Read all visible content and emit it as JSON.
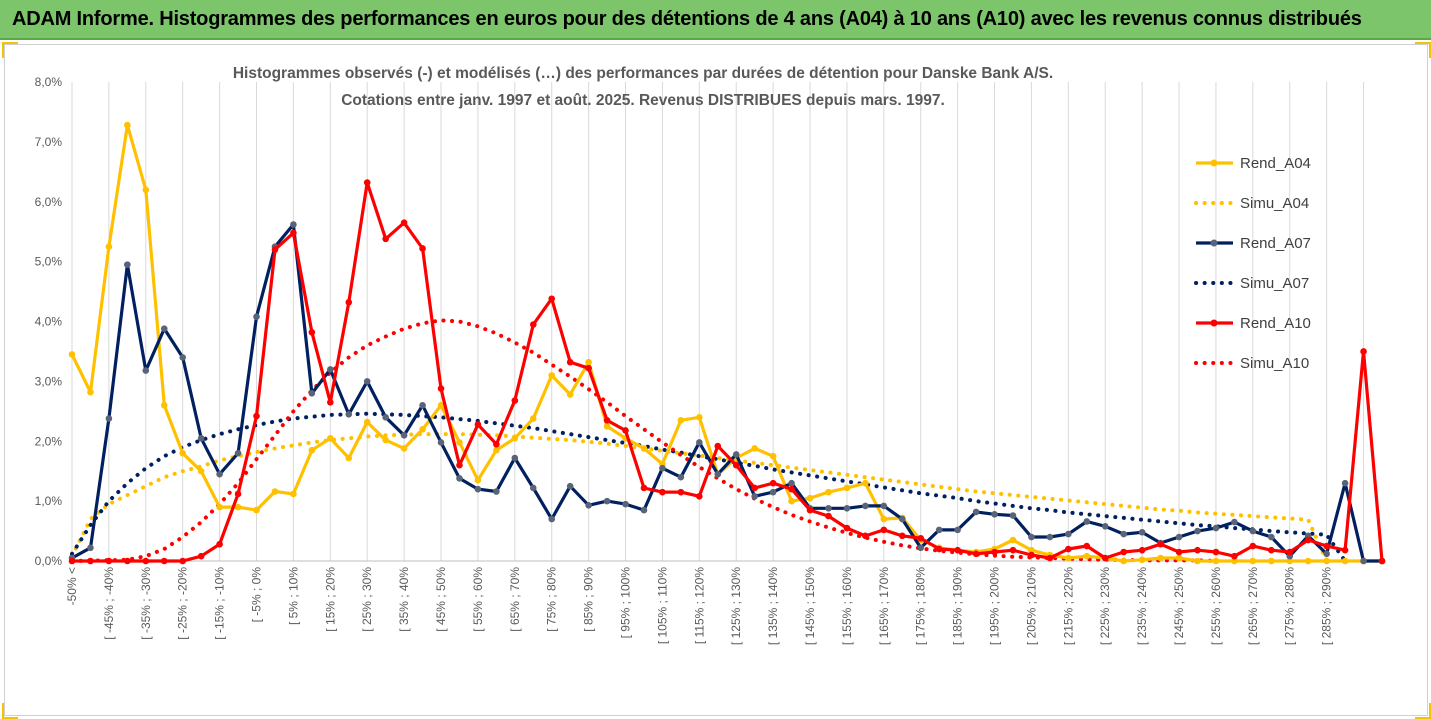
{
  "banner": {
    "title": "ADAM Informe. Histogrammes des performances en euros pour des détentions de 4 ans (A04) à 10 ans (A10) avec les revenus connus distribués"
  },
  "chart_data": {
    "type": "line",
    "title_line1": "Histogrammes observés (-) et modélisés (…) des performances par durées de détention pour Danske Bank A/S.",
    "title_line2": "Cotations entre janv. 1997 et août. 2025. Revenus DISTRIBUES depuis mars. 1997.",
    "xlabel": "",
    "ylabel": "",
    "ylim": [
      0,
      8
    ],
    "y_ticks": [
      "0,0%",
      "1,0%",
      "2,0%",
      "3,0%",
      "4,0%",
      "5,0%",
      "6,0%",
      "7,0%",
      "8,0%"
    ],
    "grid": "vertical",
    "legend_position": "right",
    "x_tick_labels": [
      "-50% <",
      "[ -45% ; -40%",
      "[ -35% ; -30%",
      "[ -25% ; -20%",
      "[ -15% ; -10%",
      "[ -5% ; 0%",
      "[ 5% ; 10%",
      "[ 15% ; 20%",
      "[ 25% ; 30%",
      "[ 35% ; 40%",
      "[ 45% ; 50%",
      "[ 55% ; 60%",
      "[ 65% ; 70%",
      "[ 75% ; 80%",
      "[ 85% ; 90%",
      "[ 95% ; 100%",
      "[ 105% ; 110%",
      "[ 115% ; 120%",
      "[ 125% ; 130%",
      "[ 135% ; 140%",
      "[ 145% ; 150%",
      "[ 155% ; 160%",
      "[ 165% ; 170%",
      "[ 175% ; 180%",
      "[ 185% ; 190%",
      "[ 195% ; 200%",
      "[ 205% ; 210%",
      "[ 215% ; 220%",
      "[ 225% ; 230%",
      "[ 235% ; 240%",
      "[ 245% ; 250%",
      "[ 255% ; 260%",
      "[ 265% ; 270%",
      "[ 275% ; 280%",
      "[ 285% ; 290%"
    ],
    "series": [
      {
        "name": "Rend_A04",
        "style": "solid",
        "color": "#ffc000",
        "values": [
          3.45,
          2.82,
          5.25,
          7.28,
          6.2,
          2.6,
          1.8,
          1.5,
          0.9,
          0.9,
          0.85,
          1.16,
          1.12,
          1.85,
          2.05,
          1.72,
          2.32,
          2.02,
          1.88,
          2.2,
          2.6,
          1.98,
          1.35,
          1.85,
          2.05,
          2.38,
          3.1,
          2.78,
          3.32,
          2.25,
          2.05,
          1.88,
          1.62,
          2.35,
          2.4,
          1.45,
          1.72,
          1.88,
          1.75,
          1.0,
          1.05,
          1.15,
          1.22,
          1.3,
          0.7,
          0.72,
          0.35,
          0.22,
          0.18,
          0.15,
          0.2,
          0.35,
          0.18,
          0.1,
          0.05,
          0.08,
          0.05,
          0.0,
          0.02,
          0.05,
          0.05,
          0.0,
          0.0,
          0.0,
          0.0,
          0.0,
          0.0,
          0.0,
          0.0,
          0.0,
          0.0,
          0.0
        ]
      },
      {
        "name": "Simu_A04",
        "style": "dotted",
        "color": "#ffc000",
        "values": [
          0.08,
          0.7,
          0.95,
          1.1,
          1.25,
          1.4,
          1.5,
          1.58,
          1.68,
          1.75,
          1.82,
          1.88,
          1.93,
          1.98,
          2.02,
          2.05,
          2.08,
          2.1,
          2.11,
          2.12,
          2.12,
          2.12,
          2.11,
          2.1,
          2.08,
          2.06,
          2.04,
          2.02,
          1.99,
          1.96,
          1.92,
          1.88,
          1.84,
          1.8,
          1.76,
          1.72,
          1.68,
          1.64,
          1.6,
          1.56,
          1.52,
          1.48,
          1.44,
          1.4,
          1.36,
          1.32,
          1.28,
          1.24,
          1.2,
          1.16,
          1.13,
          1.1,
          1.07,
          1.04,
          1.01,
          0.98,
          0.95,
          0.92,
          0.89,
          0.86,
          0.84,
          0.81,
          0.79,
          0.77,
          0.75,
          0.73,
          0.71,
          0.69,
          0.0,
          0.0,
          0.0,
          0.0
        ]
      },
      {
        "name": "Rend_A07",
        "style": "solid",
        "color": "#002060",
        "values": [
          0.05,
          0.22,
          2.38,
          4.95,
          3.18,
          3.88,
          3.4,
          2.05,
          1.45,
          1.8,
          4.08,
          5.25,
          5.62,
          2.8,
          3.2,
          2.45,
          3.0,
          2.4,
          2.1,
          2.6,
          1.98,
          1.38,
          1.2,
          1.16,
          1.72,
          1.22,
          0.7,
          1.25,
          0.93,
          1.0,
          0.95,
          0.85,
          1.55,
          1.4,
          1.98,
          1.45,
          1.78,
          1.08,
          1.15,
          1.3,
          0.88,
          0.88,
          0.88,
          0.92,
          0.92,
          0.7,
          0.22,
          0.52,
          0.52,
          0.82,
          0.78,
          0.76,
          0.4,
          0.4,
          0.45,
          0.66,
          0.58,
          0.45,
          0.48,
          0.3,
          0.4,
          0.5,
          0.55,
          0.65,
          0.5,
          0.4,
          0.08,
          0.42,
          0.12,
          1.3,
          0.0,
          0.0
        ]
      },
      {
        "name": "Simu_A07",
        "style": "dotted",
        "color": "#002060",
        "values": [
          0.12,
          0.6,
          1.0,
          1.3,
          1.55,
          1.75,
          1.9,
          2.02,
          2.12,
          2.2,
          2.27,
          2.33,
          2.38,
          2.41,
          2.44,
          2.45,
          2.46,
          2.45,
          2.44,
          2.42,
          2.4,
          2.37,
          2.34,
          2.3,
          2.26,
          2.22,
          2.17,
          2.12,
          2.07,
          2.02,
          1.97,
          1.92,
          1.86,
          1.81,
          1.75,
          1.7,
          1.64,
          1.59,
          1.53,
          1.48,
          1.43,
          1.38,
          1.33,
          1.28,
          1.23,
          1.18,
          1.13,
          1.09,
          1.05,
          1.0,
          0.96,
          0.92,
          0.88,
          0.85,
          0.81,
          0.78,
          0.75,
          0.72,
          0.69,
          0.66,
          0.63,
          0.6,
          0.58,
          0.55,
          0.53,
          0.5,
          0.48,
          0.46,
          0.44,
          0.0,
          0.0,
          0.0
        ]
      },
      {
        "name": "Rend_A10",
        "style": "solid",
        "color": "#ff0000",
        "values": [
          0.0,
          0.0,
          0.0,
          0.0,
          0.0,
          0.0,
          0.0,
          0.08,
          0.28,
          1.12,
          2.42,
          5.2,
          5.48,
          3.82,
          2.65,
          4.32,
          6.32,
          5.38,
          5.65,
          5.22,
          2.88,
          1.6,
          2.28,
          1.95,
          2.68,
          3.95,
          4.38,
          3.32,
          3.22,
          2.35,
          2.18,
          1.22,
          1.15,
          1.15,
          1.08,
          1.92,
          1.6,
          1.22,
          1.3,
          1.2,
          0.85,
          0.75,
          0.55,
          0.42,
          0.52,
          0.42,
          0.38,
          0.2,
          0.18,
          0.12,
          0.15,
          0.18,
          0.1,
          0.05,
          0.2,
          0.25,
          0.05,
          0.15,
          0.18,
          0.28,
          0.15,
          0.18,
          0.15,
          0.08,
          0.25,
          0.18,
          0.15,
          0.35,
          0.25,
          0.18,
          3.5,
          0.0
        ]
      },
      {
        "name": "Simu_A10",
        "style": "dotted",
        "color": "#ff0000",
        "values": [
          0.0,
          0.0,
          0.0,
          0.02,
          0.08,
          0.2,
          0.4,
          0.65,
          0.95,
          1.3,
          1.7,
          2.1,
          2.5,
          2.85,
          3.15,
          3.4,
          3.6,
          3.75,
          3.88,
          3.97,
          4.02,
          4.0,
          3.92,
          3.8,
          3.65,
          3.48,
          3.28,
          3.08,
          2.87,
          2.65,
          2.42,
          2.2,
          1.98,
          1.77,
          1.57,
          1.38,
          1.2,
          1.04,
          0.9,
          0.77,
          0.66,
          0.56,
          0.47,
          0.39,
          0.32,
          0.26,
          0.21,
          0.17,
          0.14,
          0.11,
          0.09,
          0.07,
          0.06,
          0.05,
          0.04,
          0.03,
          0.02,
          0.02,
          0.01,
          0.01,
          0.01,
          0.01,
          0.0,
          0.0,
          0.0,
          0.0,
          0.0,
          0.0,
          0.0,
          0.0,
          0.0,
          0.0
        ]
      }
    ]
  }
}
